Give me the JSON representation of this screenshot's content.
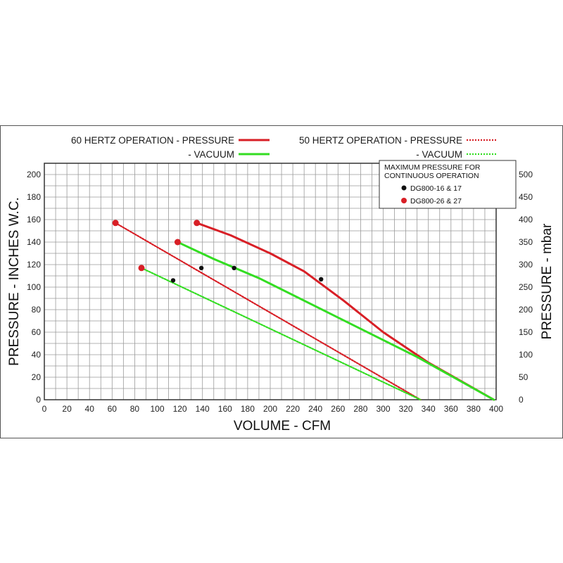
{
  "chart_data": {
    "type": "line",
    "xlabel": "VOLUME - CFM",
    "ylabel": "PRESSURE - INCHES W.C.",
    "y2label": "PRESSURE - mbar",
    "xlim": [
      0,
      400
    ],
    "ylim": [
      0,
      210
    ],
    "y2lim": [
      0,
      525
    ],
    "x_ticks": [
      0,
      20,
      40,
      60,
      80,
      100,
      120,
      140,
      160,
      180,
      200,
      220,
      240,
      260,
      280,
      300,
      320,
      340,
      360,
      380,
      400
    ],
    "y_ticks": [
      0,
      20,
      40,
      60,
      80,
      100,
      120,
      140,
      160,
      180,
      200
    ],
    "y2_ticks": [
      0,
      50,
      100,
      150,
      200,
      250,
      300,
      350,
      400,
      450,
      500
    ],
    "grid": true,
    "legend": {
      "left": {
        "title": "60 HERTZ OPERATION - PRESSURE",
        "items": [
          {
            "label": "60 HERTZ OPERATION - PRESSURE",
            "color": "#d81f26",
            "style": "solid"
          },
          {
            "label": "- VACUUM",
            "color": "#33dd22",
            "style": "solid"
          }
        ]
      },
      "right": {
        "items": [
          {
            "label": "50 HERTZ OPERATION - PRESSURE",
            "color": "#d81f26",
            "style": "dotted"
          },
          {
            "label": "- VACUUM",
            "color": "#33dd22",
            "style": "dotted"
          }
        ]
      }
    },
    "marker_box": {
      "title_lines": [
        "MAXIMUM PRESSURE FOR",
        "CONTINUOUS OPERATION"
      ],
      "items": [
        {
          "label": "DG800-16 & 17",
          "color": "#111111"
        },
        {
          "label": "DG800-26 & 27",
          "color": "#d81f26"
        }
      ]
    },
    "series": [
      {
        "id": "p60",
        "color": "#d81f26",
        "style": "solid",
        "points": [
          [
            135,
            157
          ],
          [
            165,
            146
          ],
          [
            200,
            130
          ],
          [
            230,
            114
          ],
          [
            265,
            88
          ],
          [
            300,
            60
          ],
          [
            340,
            33
          ],
          [
            398,
            0
          ]
        ]
      },
      {
        "id": "v60",
        "color": "#33dd22",
        "style": "solid",
        "points": [
          [
            118,
            140
          ],
          [
            150,
            125
          ],
          [
            190,
            108
          ],
          [
            240,
            83
          ],
          [
            290,
            58
          ],
          [
            330,
            38
          ],
          [
            398,
            0
          ]
        ]
      },
      {
        "id": "p50",
        "color": "#d81f26",
        "style": "dotted",
        "points": [
          [
            63,
            157
          ],
          [
            333,
            0
          ]
        ]
      },
      {
        "id": "v50",
        "color": "#33dd22",
        "style": "dotted",
        "points": [
          [
            86,
            117
          ],
          [
            333,
            0
          ]
        ]
      }
    ],
    "markers": [
      {
        "x": 135,
        "y": 157,
        "color": "#d81f26"
      },
      {
        "x": 118,
        "y": 140,
        "color": "#d81f26"
      },
      {
        "x": 63,
        "y": 157,
        "color": "#d81f26"
      },
      {
        "x": 86,
        "y": 117,
        "color": "#d81f26"
      },
      {
        "x": 245,
        "y": 107,
        "color": "#111111"
      },
      {
        "x": 168,
        "y": 117,
        "color": "#111111"
      },
      {
        "x": 139,
        "y": 117,
        "color": "#111111"
      },
      {
        "x": 114,
        "y": 106,
        "color": "#111111"
      }
    ]
  }
}
